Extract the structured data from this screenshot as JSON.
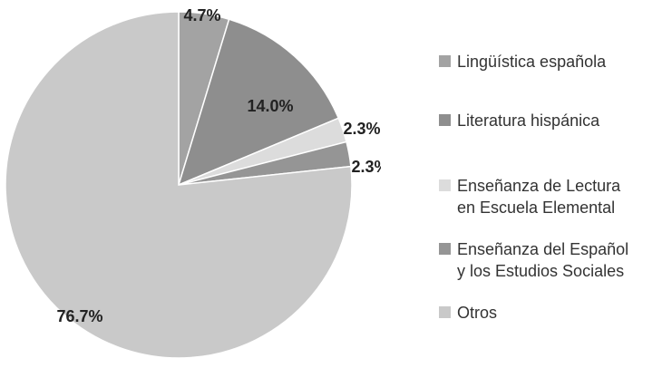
{
  "chart_data": {
    "type": "pie",
    "categories": [
      "Lingüística española",
      "Literatura hispánica",
      "Enseñanza de Lectura en Escuela Elemental",
      "Enseñanza del Español y los Estudios Sociales",
      "Otros"
    ],
    "values": [
      4.7,
      14.0,
      2.3,
      2.3,
      76.7
    ],
    "value_labels": [
      "4.7%",
      "14.0%",
      "2.3%",
      "2.3%",
      "76.7%"
    ],
    "colors": [
      "#a3a3a3",
      "#8e8e8e",
      "#dcdcdc",
      "#959595",
      "#c9c9c9"
    ],
    "legend": "right"
  }
}
